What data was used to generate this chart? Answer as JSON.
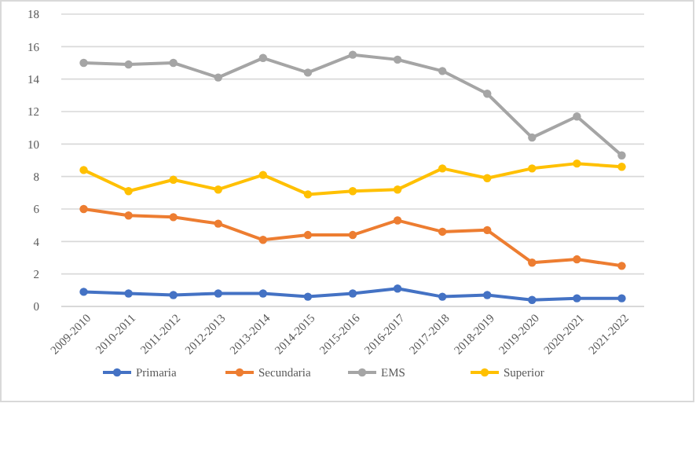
{
  "chart_data": {
    "type": "line",
    "categories": [
      "2009-2010",
      "2010-2011",
      "2011-2012",
      "2012-2013",
      "2013-2014",
      "2014-2015",
      "2015-2016",
      "2016-2017",
      "2017-2018",
      "2018-2019",
      "2019-2020",
      "2020-2021",
      "2021-2022"
    ],
    "series": [
      {
        "name": "Primaria",
        "color": "#4472c4",
        "values": [
          0.9,
          0.8,
          0.7,
          0.8,
          0.8,
          0.6,
          0.8,
          1.1,
          0.6,
          0.7,
          0.4,
          0.5,
          0.5
        ]
      },
      {
        "name": "Secundaria",
        "color": "#ed7d31",
        "values": [
          6.0,
          5.6,
          5.5,
          5.1,
          4.1,
          4.4,
          4.4,
          5.3,
          4.6,
          4.7,
          2.7,
          2.9,
          2.5
        ]
      },
      {
        "name": "EMS",
        "color": "#a5a5a5",
        "values": [
          15.0,
          14.9,
          15.0,
          14.1,
          15.3,
          14.4,
          15.5,
          15.2,
          14.5,
          13.1,
          10.4,
          11.7,
          9.3
        ]
      },
      {
        "name": "Superior",
        "color": "#ffc000",
        "values": [
          8.4,
          7.1,
          7.8,
          7.2,
          8.1,
          6.9,
          7.1,
          7.2,
          8.5,
          7.9,
          8.5,
          8.8,
          8.6
        ]
      }
    ],
    "ylim": [
      0,
      18
    ],
    "yticks": [
      0,
      2,
      4,
      6,
      8,
      10,
      12,
      14,
      16,
      18
    ],
    "grid": "y",
    "legend": "bottom",
    "marker": "circle",
    "line_style": "solid"
  }
}
